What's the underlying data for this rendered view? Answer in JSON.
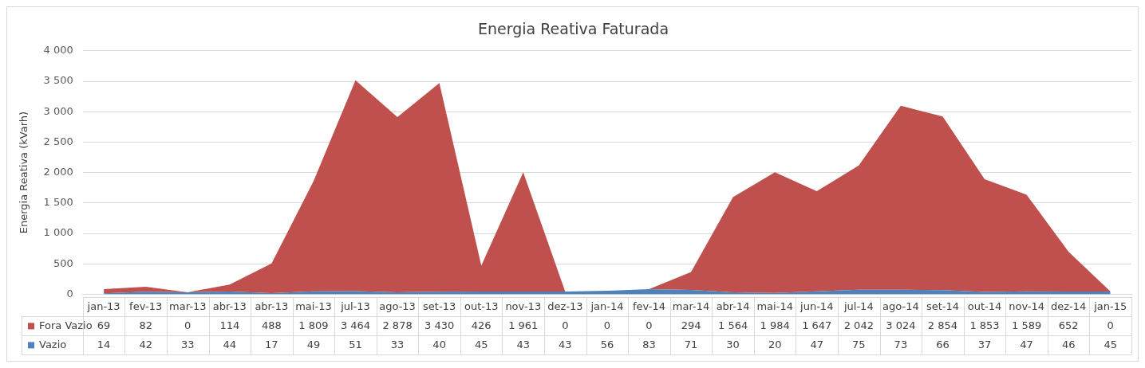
{
  "chart_data": {
    "type": "area",
    "title": "Energia Reativa Faturada",
    "ylabel": "Energia Reativa (kVarh)",
    "categories": [
      "jan-13",
      "fev-13",
      "mar-13",
      "abr-13",
      "abr-13",
      "mai-13",
      "jul-13",
      "ago-13",
      "set-13",
      "out-13",
      "nov-13",
      "dez-13",
      "jan-14",
      "fev-14",
      "mar-14",
      "abr-14",
      "mai-14",
      "jun-14",
      "jul-14",
      "ago-14",
      "set-14",
      "out-14",
      "nov-14",
      "dez-14",
      "jan-15"
    ],
    "series": [
      {
        "name": "Vazio",
        "color": "#4f81bd",
        "values": [
          14,
          42,
          33,
          44,
          17,
          49,
          51,
          33,
          40,
          45,
          43,
          43,
          56,
          83,
          71,
          30,
          20,
          47,
          75,
          73,
          66,
          37,
          47,
          46,
          45
        ]
      },
      {
        "name": "Fora Vazio",
        "color": "#c0504d",
        "values": [
          69,
          82,
          0,
          114,
          488,
          1809,
          3464,
          2878,
          3430,
          426,
          1961,
          0,
          0,
          0,
          294,
          1564,
          1984,
          1647,
          2042,
          3024,
          2854,
          1853,
          1589,
          652,
          0
        ]
      }
    ],
    "stacked": true,
    "ylim": [
      0,
      4000
    ],
    "yticks": [
      0,
      {
        "value": 500,
        "label": "500"
      },
      {
        "value": 1000,
        "label": "1 000"
      },
      {
        "value": 1500,
        "label": "1 500"
      },
      {
        "value": 2000,
        "label": "2 000"
      },
      {
        "value": 2500,
        "label": "2 500"
      },
      {
        "value": 3000,
        "label": "3 000"
      },
      {
        "value": 3500,
        "label": "3 500"
      },
      {
        "value": 4000,
        "label": "4 000"
      }
    ],
    "grid": "y",
    "legend": "bottom",
    "data_labels": true
  }
}
